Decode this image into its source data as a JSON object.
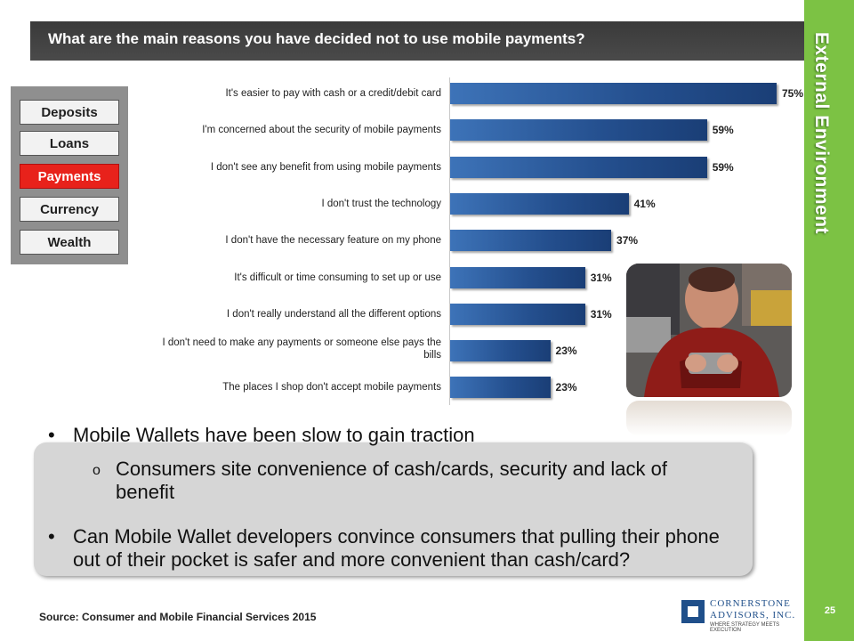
{
  "title": "What are the main reasons you have decided not to use mobile payments?",
  "side_label": "External Environment",
  "page_number": "25",
  "nav": {
    "items": [
      {
        "label": "Deposits",
        "active": false
      },
      {
        "label": "Loans",
        "active": false
      },
      {
        "label": "Payments",
        "active": true
      },
      {
        "label": "Currency",
        "active": false
      },
      {
        "label": "Wealth",
        "active": false
      }
    ]
  },
  "chart_data": {
    "type": "bar",
    "orientation": "horizontal",
    "categories": [
      "It's easier to pay with cash or a credit/debit card",
      "I'm concerned about the security of mobile payments",
      "I don't see any benefit from using mobile payments",
      "I don't trust the technology",
      "I don't have the necessary feature on my phone",
      "It's difficult or time consuming to set up or use",
      "I don't really understand all the different options",
      "I don't need to make any payments or someone else pays the bills",
      "The places I shop don't accept mobile payments"
    ],
    "values": [
      75,
      59,
      59,
      41,
      37,
      31,
      31,
      23,
      23
    ],
    "value_labels": [
      "75%",
      "59%",
      "59%",
      "41%",
      "37%",
      "31%",
      "31%",
      "23%",
      "23%"
    ],
    "xlim": [
      0,
      80
    ],
    "color": "#2a5797"
  },
  "bullets": {
    "b1": "Mobile Wallets have been slow to gain traction",
    "b1_marker": "•",
    "sub1": "Consumers site convenience of cash/cards, security and lack of benefit",
    "sub_marker": "o",
    "b2": "Can Mobile Wallet developers convince consumers that pulling their phone out of their pocket is safer and more convenient than cash/card?",
    "b2_marker": "•"
  },
  "source": "Source: Consumer and Mobile Financial Services 2015",
  "logo": {
    "line1": "CORNERSTONE",
    "line2": "ADVISORS, INC.",
    "tagline": "WHERE STRATEGY MEETS EXECUTION"
  }
}
